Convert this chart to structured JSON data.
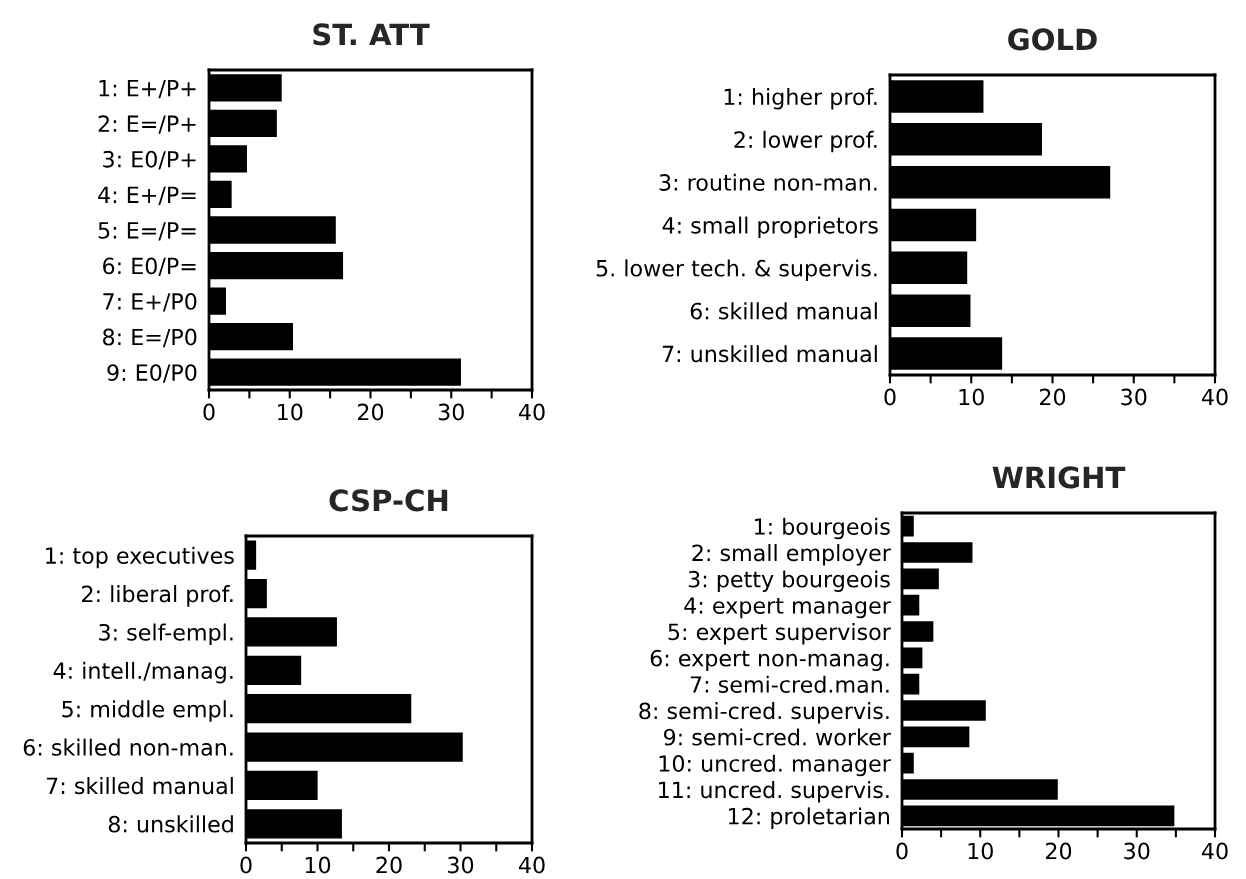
{
  "chart_data": [
    {
      "type": "bar",
      "orientation": "horizontal",
      "title": "ST. ATT",
      "categories": [
        "1: E+/P+",
        "2: E=/P+",
        "3: E0/P+",
        "4: E+/P=",
        "5: E=/P=",
        "6: E0/P=",
        "7: E+/P0",
        "8: E=/P0",
        "9: E0/P0"
      ],
      "values": [
        8.9,
        8.3,
        4.6,
        2.7,
        15.6,
        16.5,
        2.0,
        10.3,
        31.1
      ],
      "color": "#000000",
      "xlim": [
        0,
        40
      ],
      "xticks": [
        0,
        {
          "value": 5,
          "label": null
        },
        10,
        {
          "value": 15,
          "label": null
        },
        20,
        {
          "value": 25,
          "label": null
        },
        30,
        {
          "value": 35,
          "label": null
        },
        40
      ],
      "grid": false
    },
    {
      "type": "bar",
      "orientation": "horizontal",
      "title": "GOLD",
      "categories": [
        "1: higher prof.",
        "2: lower prof.",
        "3: routine non-man.",
        "4: small proprietors",
        "5. lower tech. & supervis.",
        "6: skilled manual",
        "7: unskilled manual"
      ],
      "values": [
        11.4,
        18.6,
        27.0,
        10.5,
        9.4,
        9.8,
        13.7
      ],
      "color": "#000000",
      "xlim": [
        0,
        40
      ],
      "xticks": [
        0,
        {
          "value": 5,
          "label": null
        },
        10,
        {
          "value": 15,
          "label": null
        },
        20,
        {
          "value": 25,
          "label": null
        },
        30,
        {
          "value": 35,
          "label": null
        },
        40
      ],
      "grid": false
    },
    {
      "type": "bar",
      "orientation": "horizontal",
      "title": "CSP-CH",
      "categories": [
        "1: top executives",
        "2: liberal prof.",
        "3: self-empl.",
        "4: intell./manag.",
        "5: middle empl.",
        "6: skilled non-man.",
        "7: skilled manual",
        "8: unskilled"
      ],
      "values": [
        1.3,
        2.8,
        12.6,
        7.6,
        23.0,
        30.2,
        9.9,
        13.3
      ],
      "color": "#000000",
      "xlim": [
        0,
        40
      ],
      "xticks": [
        0,
        {
          "value": 5,
          "label": null
        },
        10,
        {
          "value": 15,
          "label": null
        },
        20,
        {
          "value": 25,
          "label": null
        },
        30,
        {
          "value": 35,
          "label": null
        },
        40
      ],
      "grid": false
    },
    {
      "type": "bar",
      "orientation": "horizontal",
      "title": "WRIGHT",
      "categories": [
        "1: bourgeois",
        "2: small employer",
        "3: petty bourgeois",
        "4: expert manager",
        "5: expert supervisor",
        "6: expert non-manag.",
        "7: semi-cred.man.",
        "8: semi-cred. supervis.",
        "9: semi-cred. worker",
        "10: uncred. manager",
        "11: uncred. supervis.",
        "12: proletarian"
      ],
      "values": [
        1.4,
        8.9,
        4.6,
        2.1,
        3.9,
        2.5,
        2.1,
        10.6,
        8.5,
        1.4,
        19.8,
        34.7
      ],
      "color": "#000000",
      "xlim": [
        0,
        40
      ],
      "xticks": [
        0,
        {
          "value": 5,
          "label": null
        },
        10,
        {
          "value": 15,
          "label": null
        },
        20,
        {
          "value": 25,
          "label": null
        },
        30,
        {
          "value": 35,
          "label": null
        },
        40
      ],
      "grid": false
    }
  ]
}
